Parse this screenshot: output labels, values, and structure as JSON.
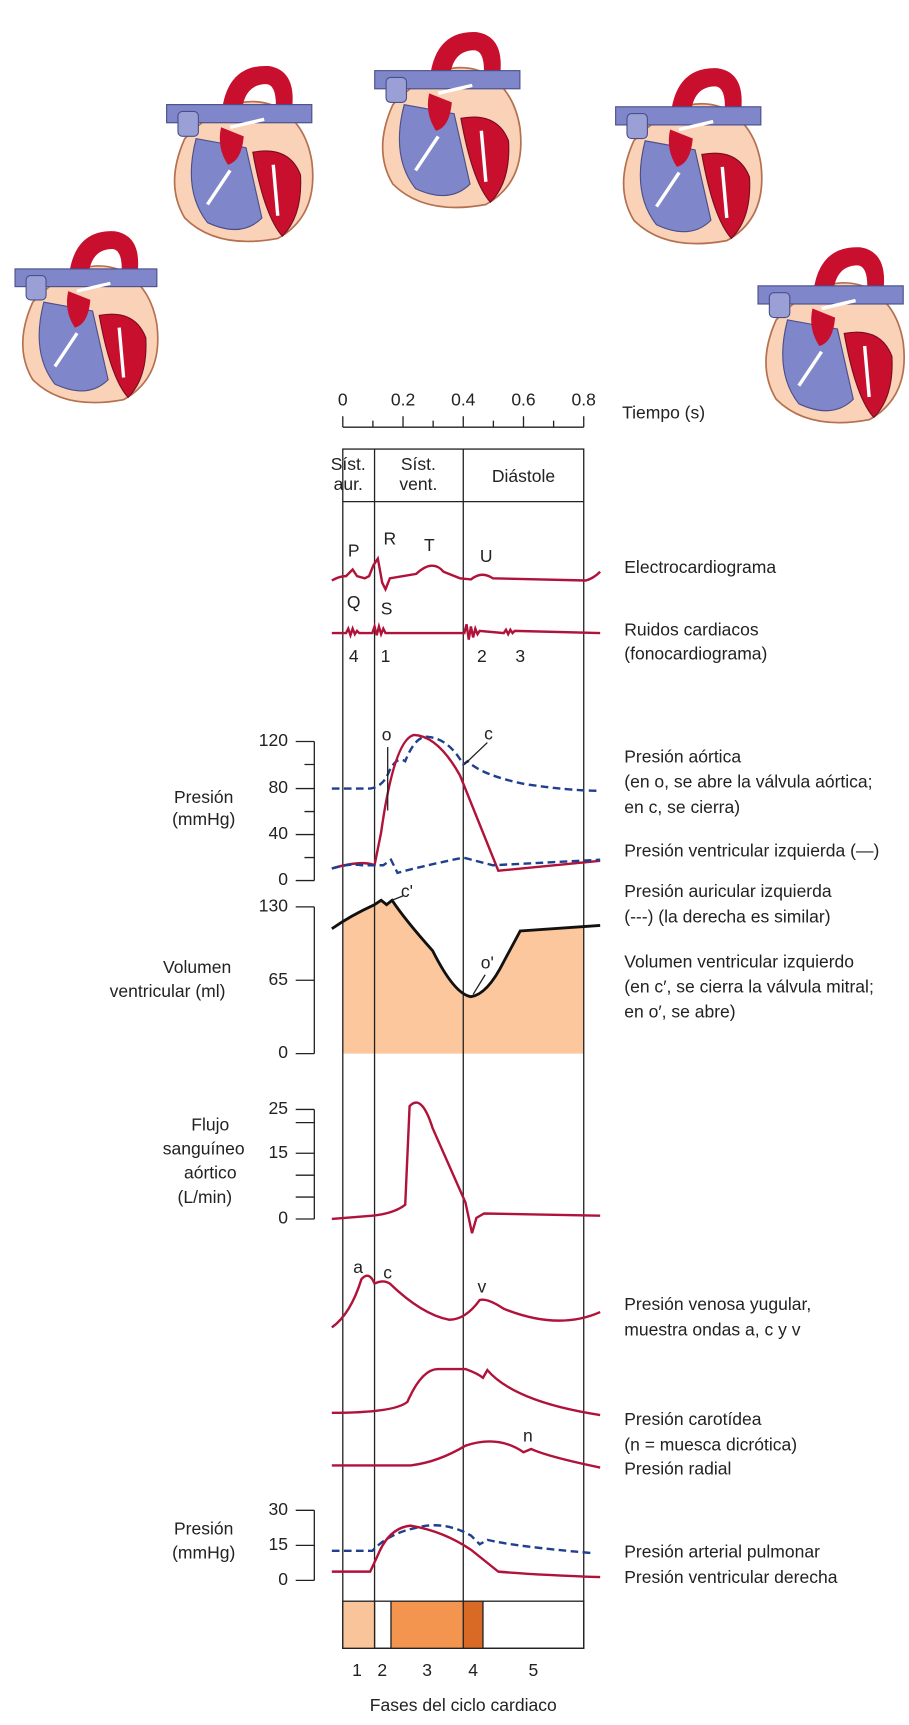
{
  "time_axis": {
    "ticks": [
      "0",
      "0.2",
      "0.4",
      "0.6",
      "0.8"
    ],
    "label": "Tiempo (s)"
  },
  "phases": [
    [
      "Síst.",
      "aur."
    ],
    [
      "Síst.",
      "vent."
    ],
    [
      "Diástole"
    ]
  ],
  "ecg": {
    "waves": [
      "P",
      "R",
      "T",
      "U",
      "Q",
      "S"
    ],
    "label": "Electrocardiograma"
  },
  "heart_sounds": {
    "numbers": [
      "4",
      "1",
      "2",
      "3"
    ],
    "label": [
      "Ruidos cardiacos",
      "(fonocardiograma)"
    ]
  },
  "pressure": {
    "axis_label": [
      "Presión",
      "(mmHg)"
    ],
    "ticks": [
      "120",
      "80",
      "40",
      "0"
    ],
    "markers": [
      "o",
      "c"
    ],
    "labels": {
      "aortic": [
        "Presión aórtica",
        "(en o, se abre la válvula aórtica;",
        "en c, se cierra)"
      ],
      "left_ventricular": "Presión ventricular izquierda (—)",
      "left_atrial": [
        "Presión auricular izquierda",
        "(---) (la derecha es similar)"
      ]
    }
  },
  "volume": {
    "axis_label": [
      "Volumen",
      "ventricular (ml)"
    ],
    "ticks": [
      "130",
      "65",
      "0"
    ],
    "markers": [
      "c'",
      "o'"
    ],
    "label": [
      "Volumen ventricular izquierdo",
      "(en c′, se cierra la válvula mitral;",
      "en o′, se abre)"
    ]
  },
  "aortic_flow": {
    "axis_label": [
      "Flujo",
      "sanguíneo",
      "aórtico",
      "(L/min)"
    ],
    "ticks": [
      "25",
      "15",
      "0"
    ]
  },
  "jugular": {
    "markers": [
      "a",
      "c",
      "v"
    ],
    "label": [
      "Presión venosa yugular,",
      "muestra ondas a, c y v"
    ]
  },
  "carotid": {
    "label": [
      "Presión carotídea",
      "(n = muesca dicrótica)"
    ]
  },
  "radial": {
    "marker": "n",
    "label": "Presión radial"
  },
  "right_pressure": {
    "axis_label": [
      "Presión",
      "(mmHg)"
    ],
    "ticks": [
      "30",
      "15",
      "0"
    ],
    "labels": [
      "Presión arterial pulmonar",
      "Presión ventricular derecha"
    ]
  },
  "cycle_phases": {
    "numbers": [
      "1",
      "2",
      "3",
      "4",
      "5"
    ],
    "label": "Fases del ciclo cardiaco"
  }
}
